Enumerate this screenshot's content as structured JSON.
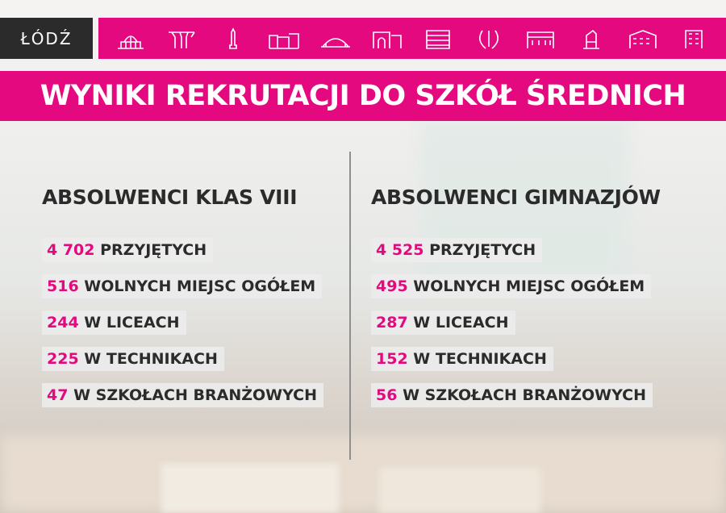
{
  "logo": {
    "text": "ŁÓDŹ"
  },
  "icons": [
    "railway-station-icon",
    "concrete-canopy-icon",
    "monument-icon",
    "factory-icon",
    "arena-icon",
    "gate-icon",
    "office-block-icon",
    "abstract-sculpture-icon",
    "palace-icon",
    "sculpture-icon",
    "tenement-icon",
    "tower-block-icon"
  ],
  "colors": {
    "accent": "#e5097f",
    "dark": "#2b2b2b"
  },
  "title": "WYNIKI REKRUTACJI DO SZKÓŁ ŚREDNICH",
  "left": {
    "heading": "ABSOLWENCI KLAS VIII",
    "rows": [
      {
        "num": "4 702",
        "label": "PRZYJĘTYCH"
      },
      {
        "num": "516",
        "label": "WOLNYCH MIEJSC OGÓŁEM"
      },
      {
        "num": "244",
        "label": "W LICEACH"
      },
      {
        "num": "225",
        "label": "W TECHNIKACH"
      },
      {
        "num": "47",
        "label": "W SZKOŁACH BRANŻOWYCH"
      }
    ]
  },
  "right": {
    "heading": "ABSOLWENCI GIMNAZJÓW",
    "rows": [
      {
        "num": "4 525",
        "label": "PRZYJĘTYCH"
      },
      {
        "num": "495",
        "label": "WOLNYCH MIEJSC OGÓŁEM"
      },
      {
        "num": "287",
        "label": "W LICEACH"
      },
      {
        "num": "152",
        "label": "W TECHNIKACH"
      },
      {
        "num": "56",
        "label": "W SZKOŁACH BRANŻOWYCH"
      }
    ]
  }
}
